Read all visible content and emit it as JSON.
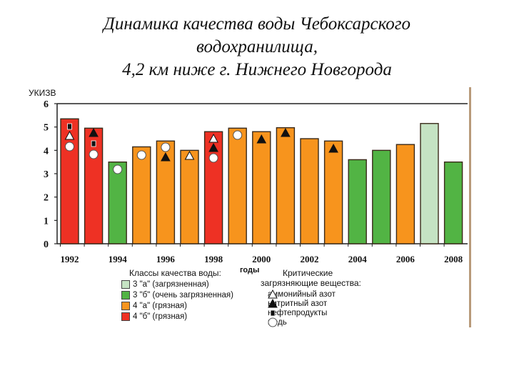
{
  "title": {
    "line1": "Динамика качества воды Чебоксарского",
    "line2": "водохранилища,",
    "line3": "4,2 км ниже г. Нижнего Новгорода"
  },
  "axis": {
    "ylabel": "УКИЗВ",
    "xlabel": "годы",
    "yticks": [
      "0",
      "1",
      "2",
      "3",
      "4",
      "5",
      "6"
    ],
    "xticks": [
      "1992",
      "1994",
      "1996",
      "1998",
      "2000",
      "2002",
      "2004",
      "2006",
      "2008"
    ]
  },
  "legend": {
    "classes_title": "Классы качества воды:",
    "classes": [
      {
        "label": "3 \"а\" (загрязненная)",
        "color": "#c5e3c3"
      },
      {
        "label": "3 \"б\" (очень загрязненная)",
        "color": "#52b444"
      },
      {
        "label": "4 \"а\" (грязная)",
        "color": "#f7941d"
      },
      {
        "label": "4 \"б\" (грязная)",
        "color": "#ee3124"
      }
    ],
    "critical_title_1": "Критические",
    "critical_title_2": "загрязняющие вещества:",
    "critical": [
      {
        "symbol": "open-triangle",
        "label": "аммонийный азот"
      },
      {
        "symbol": "filled-triangle",
        "label": "нитритный азот"
      },
      {
        "symbol": "small-square",
        "label": "нефтепродукты"
      },
      {
        "symbol": "open-circle",
        "label": "медь"
      }
    ]
  },
  "chart_data": {
    "type": "bar",
    "title": "Динамика качества воды Чебоксарского водохранилища, 4,2 км ниже г. Нижнего Новгорода",
    "xlabel": "годы",
    "ylabel": "УКИЗВ",
    "ylim": [
      0,
      6
    ],
    "grid": false,
    "categories": [
      "1992",
      "1993",
      "1994",
      "1995",
      "1996",
      "1997",
      "1998",
      "1999",
      "2000",
      "2001",
      "2002",
      "2003",
      "2004",
      "2005",
      "2006",
      "2007",
      "2008"
    ],
    "values": [
      5.35,
      4.95,
      3.5,
      4.15,
      4.4,
      4.0,
      4.8,
      4.95,
      4.8,
      4.97,
      4.5,
      4.4,
      3.6,
      4.0,
      4.25,
      5.15,
      3.5
    ],
    "water_class": [
      "4б",
      "4б",
      "3б",
      "4а",
      "4а",
      "4а",
      "4б",
      "4а",
      "4а",
      "4а",
      "4а",
      "4а",
      "3б",
      "3б",
      "4а",
      "3а",
      "3б"
    ],
    "critical_pollutants": {
      "1992": [
        "нефтепродукты",
        "аммонийный азот",
        "медь"
      ],
      "1993": [
        "нитритный азот",
        "нефтепродукты",
        "медь"
      ],
      "1994": [
        "медь"
      ],
      "1995": [
        "медь"
      ],
      "1996": [
        "медь",
        "нитритный азот"
      ],
      "1997": [
        "аммонийный азот"
      ],
      "1998": [
        "аммонийный азот",
        "нитритный азот",
        "медь"
      ],
      "1999": [
        "медь"
      ],
      "2000": [
        "нитритный азот"
      ],
      "2001": [
        "нитритный азот"
      ],
      "2003": [
        "нитритный азот"
      ]
    },
    "legend_position": "bottom"
  }
}
